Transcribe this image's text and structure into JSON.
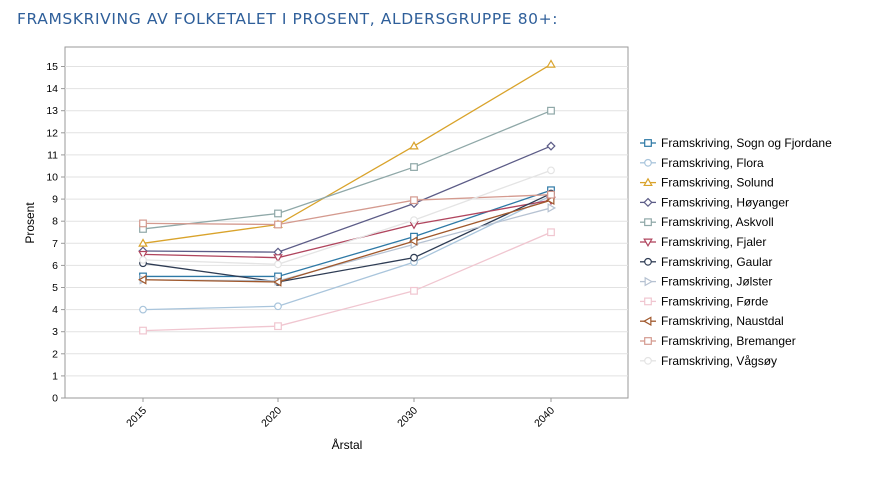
{
  "page": {
    "title": "FRAMSKRIVING AV FOLKETALET I PROSENT, ALDERSGRUPPE 80+:"
  },
  "chart_data": {
    "type": "line",
    "title": "FRAMSKRIVING AV FOLKETALET I PROSENT, ALDERSGRUPPE 80+:",
    "xlabel": "Årstal",
    "ylabel": "Prosent",
    "categories": [
      "2015",
      "2020",
      "2030",
      "2040"
    ],
    "ylim": [
      0,
      15.5
    ],
    "yticks": [
      0,
      1,
      2,
      3,
      4,
      5,
      6,
      7,
      8,
      9,
      10,
      11,
      12,
      13,
      14,
      15
    ],
    "grid": true,
    "legend_position": "right",
    "series": [
      {
        "name": "Framskriving, Sogn og Fjordane",
        "values": [
          5.5,
          5.5,
          7.3,
          9.4
        ],
        "color": "#2e79a6",
        "marker": "square"
      },
      {
        "name": "Framskriving, Flora",
        "values": [
          4.0,
          4.15,
          6.15,
          9.15
        ],
        "color": "#a9c5dc",
        "marker": "circle"
      },
      {
        "name": "Framskriving, Solund",
        "values": [
          7.0,
          7.85,
          11.4,
          15.1
        ],
        "color": "#d9a32b",
        "marker": "triangle-up"
      },
      {
        "name": "Framskriving, Høyanger",
        "values": [
          6.65,
          6.6,
          8.8,
          11.4
        ],
        "color": "#5c5c87",
        "marker": "diamond"
      },
      {
        "name": "Framskriving, Askvoll",
        "values": [
          7.65,
          8.35,
          10.45,
          13.0
        ],
        "color": "#8fa8a8",
        "marker": "square"
      },
      {
        "name": "Framskriving, Fjaler",
        "values": [
          6.5,
          6.35,
          7.85,
          8.95
        ],
        "color": "#b0455e",
        "marker": "triangle-down"
      },
      {
        "name": "Framskriving, Gaular",
        "values": [
          6.1,
          5.25,
          6.35,
          9.25
        ],
        "color": "#2e3c54",
        "marker": "circle"
      },
      {
        "name": "Framskriving, Jølster",
        "values": [
          5.35,
          5.3,
          6.95,
          8.6
        ],
        "color": "#b6c2d2",
        "marker": "triangle-right"
      },
      {
        "name": "Framskriving, Førde",
        "values": [
          3.05,
          3.25,
          4.85,
          7.5
        ],
        "color": "#f0c6d0",
        "marker": "square"
      },
      {
        "name": "Framskriving, Naustdal",
        "values": [
          5.35,
          5.25,
          7.1,
          8.95
        ],
        "color": "#a0582c",
        "marker": "triangle-left"
      },
      {
        "name": "Framskriving, Bremanger",
        "values": [
          7.9,
          7.85,
          8.95,
          9.2
        ],
        "color": "#d49a8f",
        "marker": "square"
      },
      {
        "name": "Framskriving, Vågsøy",
        "values": [
          6.25,
          6.05,
          8.05,
          10.3
        ],
        "color": "#e4e4e4",
        "marker": "circle"
      }
    ]
  }
}
